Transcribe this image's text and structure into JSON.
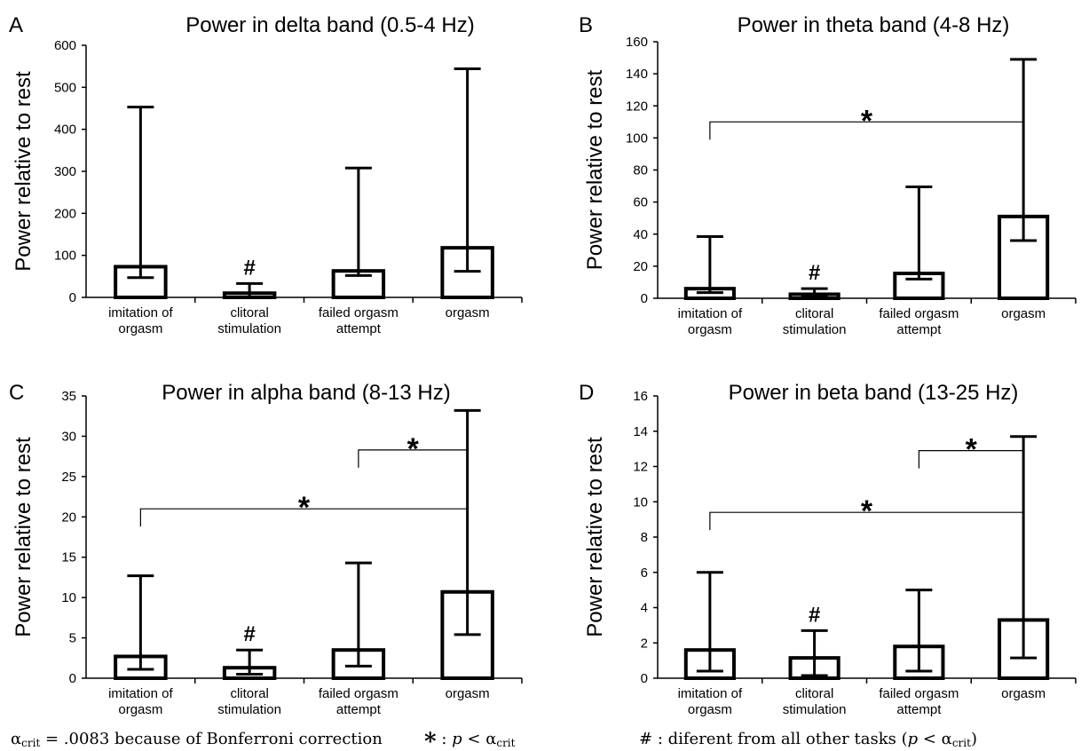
{
  "chart_data": [
    {
      "panel_label": "A",
      "type": "bar",
      "title": "Power in delta band (0.5-4 Hz)",
      "xlabel": "",
      "ylabel": "Power relative to rest",
      "ylim": [
        0,
        600
      ],
      "yticks": [
        0,
        100,
        200,
        300,
        400,
        500,
        600
      ],
      "categories": [
        [
          "imitation of",
          "orgasm"
        ],
        [
          "clitoral",
          "stimulation"
        ],
        [
          "failed orgasm",
          "attempt"
        ],
        [
          "orgasm"
        ]
      ],
      "values": [
        73,
        10,
        63,
        118
      ],
      "error_low": [
        47,
        0,
        52,
        62
      ],
      "error_high": [
        453,
        33,
        308,
        544
      ],
      "hash_marks": [
        1
      ],
      "significance_brackets": []
    },
    {
      "panel_label": "B",
      "type": "bar",
      "title": "Power in theta band (4-8 Hz)",
      "xlabel": "",
      "ylabel": "Power relative to rest",
      "ylim": [
        0,
        160
      ],
      "yticks": [
        0,
        20,
        40,
        60,
        80,
        100,
        120,
        140,
        160
      ],
      "categories": [
        [
          "imitation of",
          "orgasm"
        ],
        [
          "clitoral",
          "stimulation"
        ],
        [
          "failed orgasm",
          "attempt"
        ],
        [
          "orgasm"
        ]
      ],
      "values": [
        6,
        2.5,
        15.5,
        51
      ],
      "error_low": [
        3.5,
        1,
        12,
        36
      ],
      "error_high": [
        38.5,
        6,
        69.5,
        149
      ],
      "hash_marks": [
        1
      ],
      "significance_brackets": [
        {
          "from": 0,
          "to": 3,
          "y": 110,
          "label": "*"
        }
      ]
    },
    {
      "panel_label": "C",
      "type": "bar",
      "title": "Power in alpha band (8-13 Hz)",
      "xlabel": "",
      "ylabel": "Power relative to rest",
      "ylim": [
        0,
        35
      ],
      "yticks": [
        0,
        5,
        10,
        15,
        20,
        25,
        30,
        35
      ],
      "categories": [
        [
          "imitation of",
          "orgasm"
        ],
        [
          "clitoral",
          "stimulation"
        ],
        [
          "failed orgasm",
          "attempt"
        ],
        [
          "orgasm"
        ]
      ],
      "values": [
        2.7,
        1.3,
        3.5,
        10.7
      ],
      "error_low": [
        1.1,
        0.5,
        1.5,
        5.4
      ],
      "error_high": [
        12.7,
        3.5,
        14.3,
        33.2
      ],
      "hash_marks": [
        1
      ],
      "significance_brackets": [
        {
          "from": 0,
          "to": 3,
          "y": 21,
          "label": "*"
        },
        {
          "from": 2,
          "to": 3,
          "y": 28.3,
          "label": "*"
        }
      ]
    },
    {
      "panel_label": "D",
      "type": "bar",
      "title": "Power in beta band (13-25 Hz)",
      "xlabel": "",
      "ylabel": "Power relative to rest",
      "ylim": [
        0,
        16
      ],
      "yticks": [
        0,
        2,
        4,
        6,
        8,
        10,
        12,
        14,
        16
      ],
      "categories": [
        [
          "imitation of",
          "orgasm"
        ],
        [
          "clitoral",
          "stimulation"
        ],
        [
          "failed orgasm",
          "attempt"
        ],
        [
          "orgasm"
        ]
      ],
      "values": [
        1.6,
        1.15,
        1.8,
        3.3
      ],
      "error_low": [
        0.4,
        0.15,
        0.4,
        1.15
      ],
      "error_high": [
        6,
        2.7,
        5,
        13.7
      ],
      "hash_marks": [
        1
      ],
      "significance_brackets": [
        {
          "from": 0,
          "to": 3,
          "y": 9.4,
          "label": "*"
        },
        {
          "from": 2,
          "to": 3,
          "y": 12.9,
          "label": "*"
        }
      ]
    }
  ],
  "markers": {
    "hash": "#",
    "star": "*"
  },
  "footnotes": {
    "alpha_symbol": "α",
    "alpha_sub": "crit",
    "bonferroni_value": " = .0083 because of Bonferroni correction",
    "star_symbol": "*",
    "star_text": " : ",
    "p_symbol": "p",
    "lt_text": " < ",
    "hash_symbol": "#",
    "hash_text": " : diferent from all other tasks (",
    "hash_close": ")"
  }
}
